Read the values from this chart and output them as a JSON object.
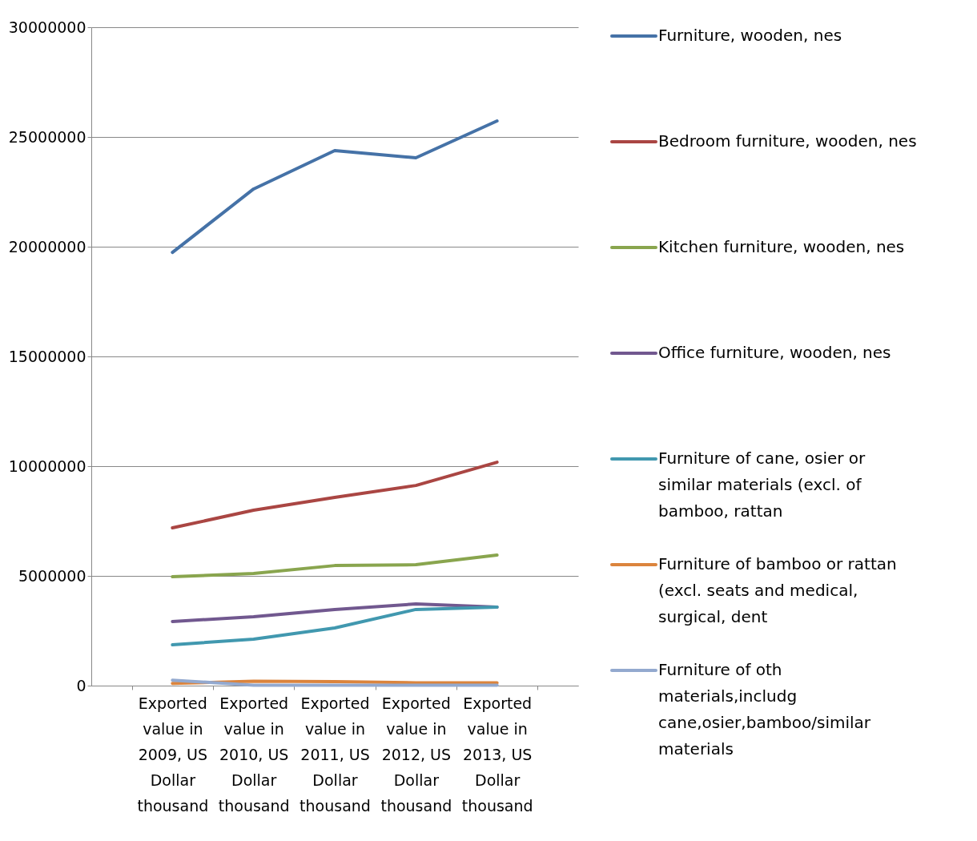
{
  "chart_data": {
    "type": "line",
    "categories": [
      "Exported value in 2009, US Dollar thousand",
      "Exported value in 2010, US Dollar thousand",
      "Exported value in 2011, US Dollar thousand",
      "Exported value in 2012, US Dollar thousand",
      "Exported value in 2013, US Dollar thousand"
    ],
    "series": [
      {
        "name": "Furniture, wooden, nes",
        "color": "#4572a7",
        "values": [
          19740000,
          22630000,
          24380000,
          24050000,
          25730000
        ]
      },
      {
        "name": "Bedroom furniture, wooden, nes",
        "color": "#aa4643",
        "values": [
          7190000,
          7990000,
          8580000,
          9120000,
          10180000
        ]
      },
      {
        "name": "Kitchen furniture, wooden, nes",
        "color": "#89a54e",
        "values": [
          4960000,
          5110000,
          5470000,
          5510000,
          5950000
        ]
      },
      {
        "name": "Office furniture, wooden, nes",
        "color": "#71588f",
        "values": [
          2920000,
          3140000,
          3470000,
          3720000,
          3580000
        ]
      },
      {
        "name": "Furniture of cane, osier or similar materials (excl. of bamboo, rattan",
        "color": "#4198af",
        "values": [
          1860000,
          2120000,
          2630000,
          3470000,
          3580000
        ]
      },
      {
        "name": "Furniture of bamboo or rattan (excl. seats and medical, surgical, dent",
        "color": "#db843d",
        "values": [
          100000,
          200000,
          180000,
          130000,
          130000
        ]
      },
      {
        "name": "Furniture of oth materials,includg cane,osier,bamboo/similar materials",
        "color": "#93a9cf",
        "values": [
          250000,
          20000,
          20000,
          20000,
          20000
        ]
      }
    ],
    "ylim": [
      0,
      30000000
    ],
    "yticks": [
      0,
      5000000,
      10000000,
      15000000,
      20000000,
      25000000,
      30000000
    ],
    "grid": "y",
    "legend": "right",
    "marker": "none",
    "line_style": "solid"
  }
}
